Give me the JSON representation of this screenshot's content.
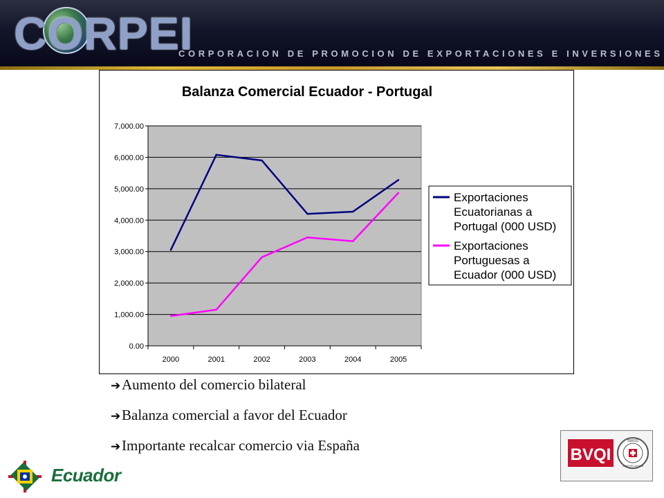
{
  "header": {
    "logo": "CORPEI",
    "tagline": "CORPORACION DE PROMOCION DE EXPORTACIONES E INVERSIONES"
  },
  "chart_data": {
    "type": "line",
    "title": "Balanza Comercial Ecuador - Portugal",
    "xlabel": "",
    "ylabel": "",
    "categories": [
      "2000",
      "2001",
      "2002",
      "2003",
      "2004",
      "2005"
    ],
    "y_ticks": [
      "0.00",
      "1,000.00",
      "2,000.00",
      "3,000.00",
      "4,000.00",
      "5,000.00",
      "6,000.00",
      "7,000.00"
    ],
    "ylim": [
      0,
      7000
    ],
    "grid": true,
    "legend_position": "right",
    "series": [
      {
        "name": "Exportaciones Ecuatorianas a Portugal (000 USD)",
        "legend_lines": [
          "Exportaciones",
          "Ecuatorianas a",
          "Portugal (000 USD)"
        ],
        "color": "#000080",
        "values": [
          3050,
          6080,
          5900,
          4200,
          4270,
          5280
        ]
      },
      {
        "name": "Exportaciones Portuguesas a Ecuador (000 USD)",
        "legend_lines": [
          "Exportaciones",
          "Portuguesas a",
          "Ecuador (000 USD)"
        ],
        "color": "#ff00ff",
        "values": [
          950,
          1150,
          2820,
          3450,
          3330,
          4870
        ]
      }
    ],
    "plot_background": "#c0c0c0"
  },
  "bullets": [
    "Aumento del comercio bilateral",
    "Balanza comercial a favor del Ecuador",
    "Importante recalcar comercio via España"
  ],
  "bullet_icon": "arrow-right-icon",
  "footer": {
    "country_label": "Ecuador",
    "cert_label": "BVQI",
    "cert_seal_lines": [
      "SWISS",
      "CERTIFICATION"
    ]
  },
  "colors": {
    "header_bg": "#0b0d22",
    "gold": "#e2b93b",
    "ecuador_green": "#1a6e3a",
    "bvqi_red": "#c8102e"
  }
}
